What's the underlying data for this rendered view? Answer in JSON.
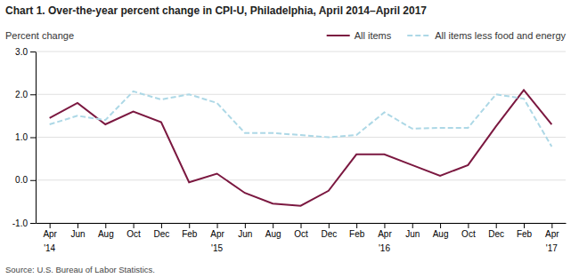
{
  "chart_data": {
    "type": "line",
    "title": "Chart 1. Over-the-year percent change in CPI-U, Philadelphia, April 2014–April 2017",
    "ylabel": "Percent change",
    "annotations": [
      "Source: U.S. Bureau of Labor Statistics."
    ],
    "categories": [
      "Apr",
      "Jun",
      "Aug",
      "Oct",
      "Dec",
      "Feb",
      "Apr",
      "Jun",
      "Aug",
      "Oct",
      "Dec",
      "Feb",
      "Apr",
      "Jun",
      "Aug",
      "Oct",
      "Dec",
      "Feb",
      "Apr"
    ],
    "category_years": [
      "'14",
      null,
      null,
      null,
      null,
      null,
      "'15",
      null,
      null,
      null,
      null,
      null,
      "'16",
      null,
      null,
      null,
      null,
      null,
      "'17"
    ],
    "series": [
      {
        "name": "All items",
        "color": "#7B1840",
        "line_style": "solid",
        "values": [
          1.45,
          1.8,
          1.3,
          1.6,
          1.35,
          -0.05,
          0.15,
          -0.3,
          -0.55,
          -0.6,
          -0.25,
          0.6,
          0.6,
          0.35,
          0.1,
          0.35,
          1.25,
          2.1,
          1.3
        ]
      },
      {
        "name": "All items less food and energy",
        "color": "#add8e6",
        "line_style": "dashed",
        "values": [
          1.3,
          1.5,
          1.4,
          2.07,
          1.88,
          2.0,
          1.8,
          1.1,
          1.1,
          1.05,
          1.0,
          1.05,
          1.58,
          1.2,
          1.22,
          1.22,
          2.0,
          1.9,
          0.78
        ]
      }
    ],
    "ylim": [
      -1.0,
      3.0
    ],
    "yticks": [
      {
        "value": -1.0,
        "label": "-1.0"
      },
      {
        "value": 0.0,
        "label": "0.0"
      },
      {
        "value": 1.0,
        "label": "1.0"
      },
      {
        "value": 2.0,
        "label": "2.0"
      },
      {
        "value": 3.0,
        "label": "3.0"
      }
    ],
    "grid": true,
    "legend": "upper-right"
  }
}
